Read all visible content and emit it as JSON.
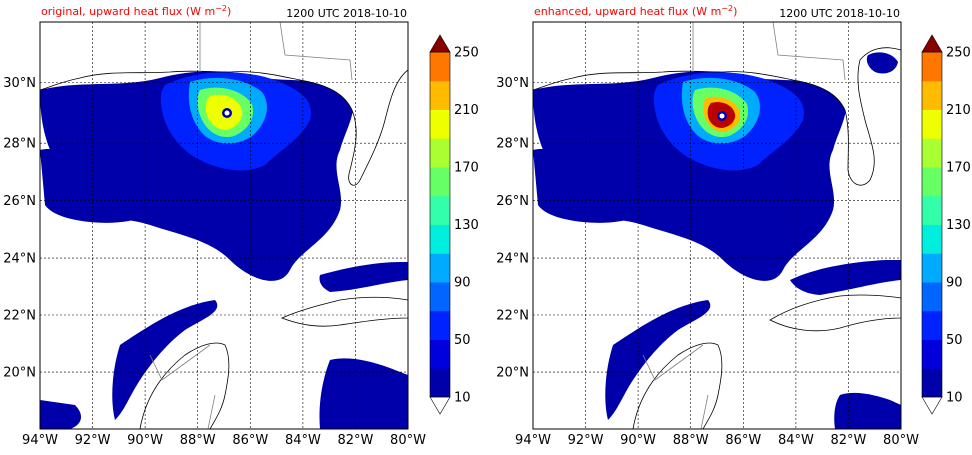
{
  "panels": [
    {
      "title": "original, upward heat flux (W m",
      "title_sup": "−2",
      "title_close": ")",
      "time": "1200 UTC 2018-10-10",
      "variant": "original"
    },
    {
      "title": "enhanced, upward heat flux (W m",
      "title_sup": "−2",
      "title_close": ")",
      "time": "1200 UTC 2018-10-10",
      "variant": "enhanced"
    }
  ],
  "map": {
    "lon_range": [
      -94,
      -80
    ],
    "lat_range": [
      18,
      32
    ],
    "lon_ticks": [
      "94°W",
      "92°W",
      "90°W",
      "88°W",
      "86°W",
      "84°W",
      "82°W",
      "80°W"
    ],
    "lat_ticks": [
      "20°N",
      "22°N",
      "24°N",
      "26°N",
      "28°N",
      "30°N"
    ],
    "grid": true
  },
  "colorbar": {
    "levels": [
      10,
      30,
      50,
      70,
      90,
      110,
      130,
      150,
      170,
      190,
      210,
      230,
      250
    ],
    "tick_labels": [
      "10",
      "50",
      "90",
      "130",
      "170",
      "210",
      "250"
    ],
    "colors": [
      "#0000aa",
      "#0000dd",
      "#0022ff",
      "#0066ff",
      "#00aaff",
      "#00eedd",
      "#33ffaa",
      "#66ff66",
      "#aaff33",
      "#eeff00",
      "#ffbb00",
      "#ff7700",
      "#ff2200",
      "#bb0000"
    ],
    "extend": "both",
    "over_color": "#880000",
    "under_color": "#ffffff"
  },
  "map_style": {
    "ocean_flux_color": "#0000aa",
    "coast_color": "#000000",
    "border_color": "#808080",
    "grid_color": "#000000"
  }
}
